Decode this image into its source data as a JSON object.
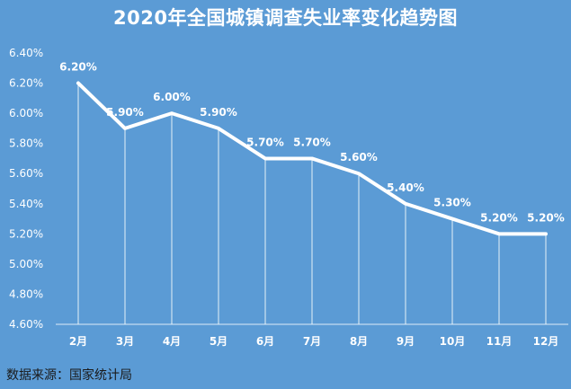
{
  "chart_data": {
    "type": "line",
    "title": "2020年全国城镇调查失业率变化趋势图",
    "categories": [
      "2月",
      "3月",
      "4月",
      "5月",
      "6月",
      "7月",
      "8月",
      "9月",
      "10月",
      "11月",
      "12月"
    ],
    "values": [
      6.2,
      5.9,
      6.0,
      5.9,
      5.7,
      5.7,
      5.6,
      5.4,
      5.3,
      5.2,
      5.2
    ],
    "data_labels": [
      "6.20%",
      "5.90%",
      "6.00%",
      "5.90%",
      "5.70%",
      "5.70%",
      "5.60%",
      "5.40%",
      "5.30%",
      "5.20%",
      "5.20%"
    ],
    "y_ticks": [
      "4.60%",
      "4.80%",
      "5.00%",
      "5.20%",
      "5.40%",
      "5.60%",
      "5.80%",
      "6.00%",
      "6.20%",
      "6.40%"
    ],
    "ylim": [
      4.6,
      6.4
    ],
    "xlabel": "",
    "ylabel": "",
    "grid": false,
    "drop_lines": true,
    "colors": {
      "background": "#5b9bd5",
      "line": "#ffffff",
      "drop_line": "#ffffff",
      "text": "#ffffff"
    }
  },
  "source": "数据来源：国家统计局"
}
